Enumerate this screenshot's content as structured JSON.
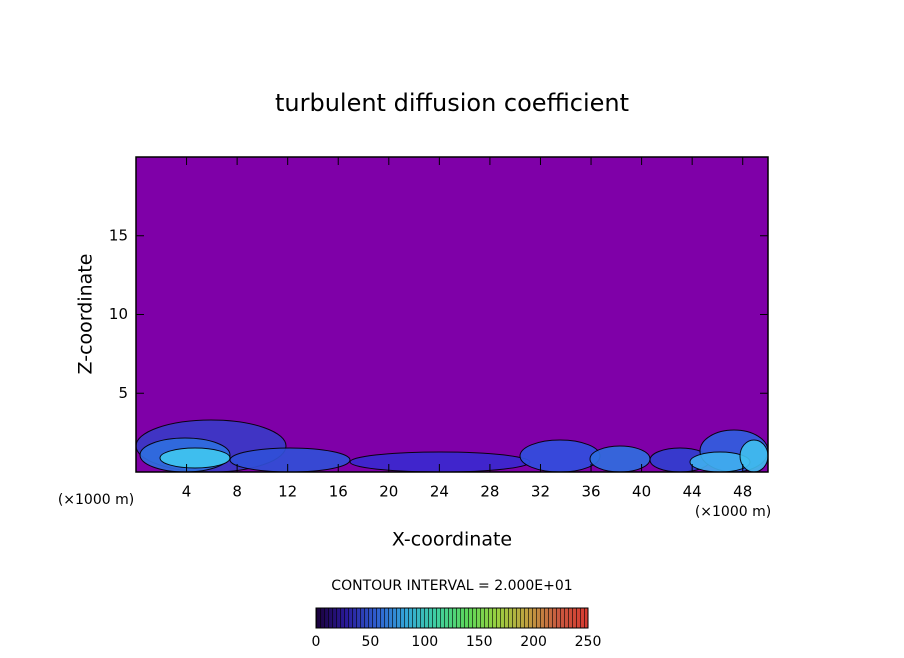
{
  "chart_data": {
    "type": "contour",
    "title": "turbulent diffusion coefficient",
    "xlabel": "X-coordinate",
    "ylabel": "Z-coordinate",
    "x_unit": "(×1000 m)",
    "x_unit_right": "(×1000 m)",
    "xlim": [
      0,
      50
    ],
    "xticks": [
      4,
      8,
      12,
      16,
      20,
      24,
      28,
      32,
      36,
      40,
      44,
      48
    ],
    "ylim": [
      0,
      20
    ],
    "yticks": [
      5,
      10,
      15
    ],
    "background_color": "#7f00a8",
    "contour_note": "CONTOUR INTERVAL = 2.000E+01",
    "colorbar": {
      "lim": [
        0,
        250
      ],
      "ticks": [
        0,
        50,
        100,
        150,
        200,
        250
      ],
      "colors": [
        "#1a0038",
        "#2a1a9a",
        "#2f5fd0",
        "#34a8d8",
        "#3fd0a0",
        "#5cd85a",
        "#9ad040",
        "#c0a040",
        "#c85a40",
        "#d83a30"
      ]
    }
  }
}
